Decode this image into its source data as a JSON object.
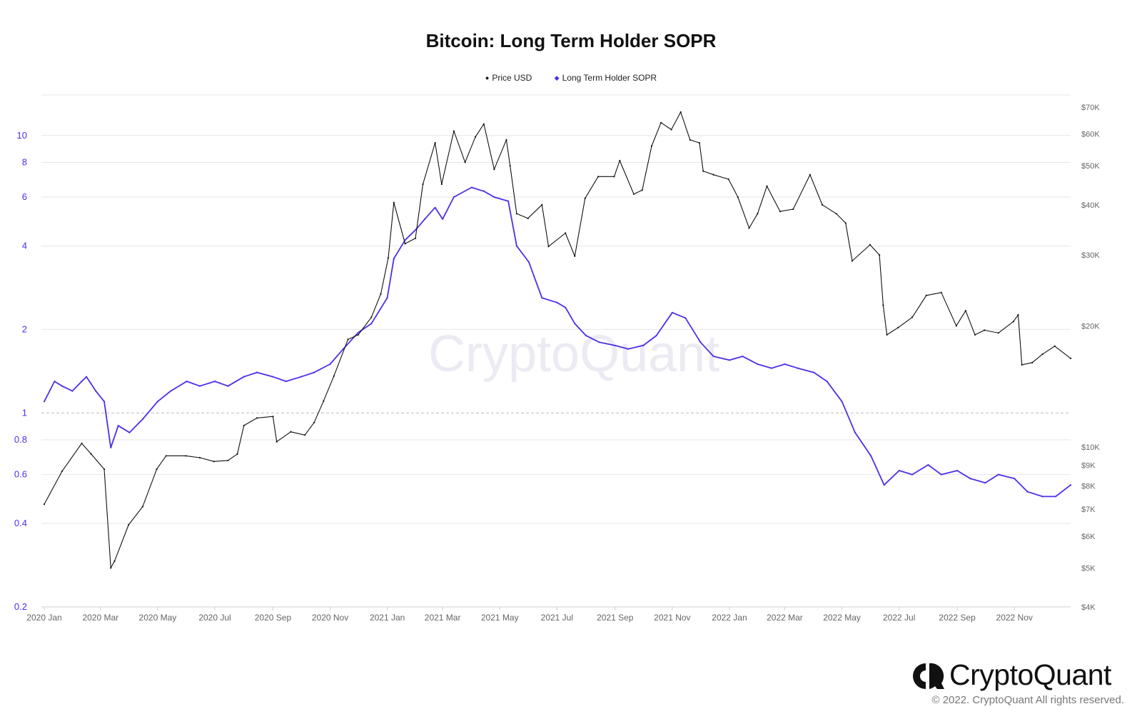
{
  "title": "Bitcoin: Long Term Holder SOPR",
  "watermark": "CryptoQuant",
  "brand": {
    "name": "CryptoQuant",
    "copyright": "© 2022. CryptoQuant All rights reserved."
  },
  "colors": {
    "price": "#111111",
    "sopr": "#4f2ee8",
    "grid": "#e6e6e6",
    "reference": "#bdbdbd",
    "left_axis": "#4f2ee8",
    "right_axis": "#666666"
  },
  "legend": [
    {
      "label": "Price USD",
      "marker": "●",
      "color": "#111111"
    },
    {
      "label": "Long Term Holder SOPR",
      "marker": "◆",
      "color": "#4f2ee8"
    }
  ],
  "chart_data": {
    "type": "line",
    "title": "Bitcoin: Long Term Holder SOPR",
    "x_range": [
      "2020-01-01",
      "2022-12-31"
    ],
    "x_ticks": [
      "2020 Jan",
      "2020 Mar",
      "2020 May",
      "2020 Jul",
      "2020 Sep",
      "2020 Nov",
      "2021 Jan",
      "2021 Mar",
      "2021 May",
      "2021 Jul",
      "2021 Sep",
      "2021 Nov",
      "2022 Jan",
      "2022 Mar",
      "2022 May",
      "2022 Jul",
      "2022 Sep",
      "2022 Nov"
    ],
    "left_axis": {
      "scale": "log",
      "range": [
        0.2,
        14
      ],
      "ticks": [
        0.2,
        0.4,
        0.6,
        0.8,
        1,
        2,
        4,
        6,
        8,
        10
      ],
      "tick_labels": [
        "0.2",
        "0.4",
        "0.6",
        "0.8",
        "1",
        "2",
        "4",
        "6",
        "8",
        "10"
      ],
      "reference_line": 1
    },
    "right_axis": {
      "scale": "log",
      "range": [
        4000,
        75000
      ],
      "ticks": [
        4000,
        5000,
        6000,
        7000,
        8000,
        9000,
        10000,
        20000,
        30000,
        40000,
        50000,
        60000,
        70000
      ],
      "tick_labels": [
        "$4K",
        "$5K",
        "$6K",
        "$7K",
        "$8K",
        "$9K",
        "$10K",
        "$20K",
        "$30K",
        "$40K",
        "$50K",
        "$60K",
        "$70K"
      ]
    },
    "grid": true,
    "legend_position": "top-center",
    "series": [
      {
        "name": "Price USD",
        "axis": "right",
        "x": [
          "2020-01-01",
          "2020-01-20",
          "2020-02-10",
          "2020-02-20",
          "2020-03-05",
          "2020-03-12",
          "2020-03-16",
          "2020-03-31",
          "2020-04-15",
          "2020-04-30",
          "2020-05-10",
          "2020-05-31",
          "2020-06-15",
          "2020-06-30",
          "2020-07-15",
          "2020-07-25",
          "2020-08-01",
          "2020-08-15",
          "2020-09-01",
          "2020-09-05",
          "2020-09-20",
          "2020-10-05",
          "2020-10-15",
          "2020-10-25",
          "2020-11-05",
          "2020-11-20",
          "2020-12-01",
          "2020-12-15",
          "2020-12-25",
          "2021-01-02",
          "2021-01-08",
          "2021-01-20",
          "2021-01-31",
          "2021-02-08",
          "2021-02-21",
          "2021-02-28",
          "2021-03-13",
          "2021-03-25",
          "2021-04-05",
          "2021-04-14",
          "2021-04-25",
          "2021-05-08",
          "2021-05-12",
          "2021-05-19",
          "2021-05-31",
          "2021-06-15",
          "2021-06-22",
          "2021-07-10",
          "2021-07-20",
          "2021-07-31",
          "2021-08-14",
          "2021-08-31",
          "2021-09-06",
          "2021-09-21",
          "2021-09-30",
          "2021-10-10",
          "2021-10-20",
          "2021-10-31",
          "2021-11-10",
          "2021-11-20",
          "2021-11-30",
          "2021-12-04",
          "2021-12-15",
          "2021-12-31",
          "2022-01-10",
          "2022-01-22",
          "2022-01-31",
          "2022-02-10",
          "2022-02-24",
          "2022-03-10",
          "2022-03-28",
          "2022-04-10",
          "2022-04-25",
          "2022-05-05",
          "2022-05-12",
          "2022-05-31",
          "2022-06-10",
          "2022-06-14",
          "2022-06-18",
          "2022-06-30",
          "2022-07-15",
          "2022-07-30",
          "2022-08-15",
          "2022-08-31",
          "2022-09-10",
          "2022-09-20",
          "2022-09-30",
          "2022-10-15",
          "2022-10-31",
          "2022-11-05",
          "2022-11-09",
          "2022-11-20",
          "2022-12-01",
          "2022-12-14",
          "2022-12-31"
        ],
        "values": [
          7200,
          8700,
          10200,
          9600,
          8800,
          5000,
          5200,
          6400,
          7100,
          8800,
          9500,
          9500,
          9400,
          9200,
          9250,
          9600,
          11300,
          11800,
          11900,
          10300,
          10900,
          10700,
          11500,
          13000,
          15000,
          18500,
          19000,
          21000,
          24000,
          29500,
          40500,
          32000,
          33000,
          45000,
          57000,
          45000,
          61000,
          51000,
          59000,
          63500,
          49000,
          58000,
          50000,
          38000,
          37000,
          40000,
          31500,
          34000,
          29800,
          41500,
          47000,
          47000,
          51500,
          42500,
          43500,
          56000,
          64000,
          61500,
          68000,
          58000,
          57000,
          48500,
          47500,
          46300,
          41800,
          35000,
          38000,
          44500,
          38500,
          39000,
          47500,
          40000,
          38000,
          36000,
          29000,
          31800,
          30000,
          22500,
          19000,
          19800,
          21000,
          23800,
          24200,
          20000,
          21800,
          19000,
          19500,
          19200,
          20500,
          21300,
          16000,
          16200,
          17000,
          17800,
          16600
        ]
      },
      {
        "name": "Long Term Holder SOPR",
        "axis": "left",
        "x": [
          "2020-01-01",
          "2020-01-12",
          "2020-01-20",
          "2020-01-31",
          "2020-02-10",
          "2020-02-15",
          "2020-02-25",
          "2020-03-05",
          "2020-03-12",
          "2020-03-20",
          "2020-04-01",
          "2020-04-15",
          "2020-05-01",
          "2020-05-15",
          "2020-06-01",
          "2020-06-15",
          "2020-07-01",
          "2020-07-15",
          "2020-08-01",
          "2020-08-15",
          "2020-09-01",
          "2020-09-15",
          "2020-10-01",
          "2020-10-15",
          "2020-11-01",
          "2020-11-15",
          "2020-12-01",
          "2020-12-15",
          "2021-01-01",
          "2021-01-08",
          "2021-01-20",
          "2021-02-01",
          "2021-02-10",
          "2021-02-21",
          "2021-03-01",
          "2021-03-13",
          "2021-04-01",
          "2021-04-14",
          "2021-04-25",
          "2021-05-10",
          "2021-05-19",
          "2021-06-01",
          "2021-06-15",
          "2021-07-01",
          "2021-07-10",
          "2021-07-20",
          "2021-08-01",
          "2021-08-15",
          "2021-09-01",
          "2021-09-15",
          "2021-10-01",
          "2021-10-15",
          "2021-11-01",
          "2021-11-15",
          "2021-12-01",
          "2021-12-15",
          "2022-01-01",
          "2022-01-15",
          "2022-01-31",
          "2022-02-15",
          "2022-03-01",
          "2022-03-15",
          "2022-04-01",
          "2022-04-15",
          "2022-05-01",
          "2022-05-15",
          "2022-06-01",
          "2022-06-15",
          "2022-07-01",
          "2022-07-15",
          "2022-08-01",
          "2022-08-15",
          "2022-09-01",
          "2022-09-15",
          "2022-10-01",
          "2022-10-15",
          "2022-11-01",
          "2022-11-15",
          "2022-12-01",
          "2022-12-15",
          "2022-12-31"
        ],
        "values": [
          1.1,
          1.3,
          1.25,
          1.2,
          1.3,
          1.35,
          1.2,
          1.1,
          0.75,
          0.9,
          0.85,
          0.95,
          1.1,
          1.2,
          1.3,
          1.25,
          1.3,
          1.25,
          1.35,
          1.4,
          1.35,
          1.3,
          1.35,
          1.4,
          1.5,
          1.7,
          1.95,
          2.1,
          2.6,
          3.6,
          4.2,
          4.6,
          5.0,
          5.5,
          5.0,
          6.0,
          6.5,
          6.3,
          6.0,
          5.8,
          4.0,
          3.5,
          2.6,
          2.5,
          2.4,
          2.1,
          1.9,
          1.8,
          1.75,
          1.7,
          1.75,
          1.9,
          2.3,
          2.2,
          1.8,
          1.6,
          1.55,
          1.6,
          1.5,
          1.45,
          1.5,
          1.45,
          1.4,
          1.3,
          1.1,
          0.85,
          0.7,
          0.55,
          0.62,
          0.6,
          0.65,
          0.6,
          0.62,
          0.58,
          0.56,
          0.6,
          0.58,
          0.52,
          0.5,
          0.5,
          0.55
        ]
      }
    ]
  }
}
